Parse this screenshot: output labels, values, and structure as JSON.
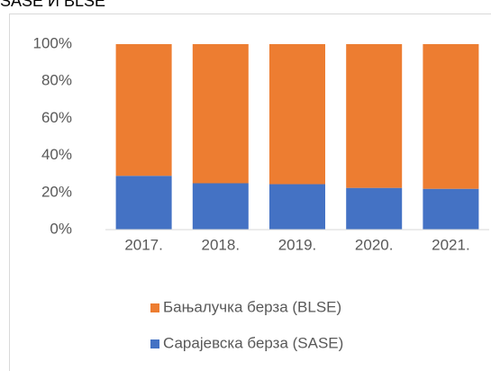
{
  "chart_data": {
    "type": "stacked_bar_100",
    "title": "SASE И BLSE",
    "categories": [
      "2017.",
      "2018.",
      "2019.",
      "2020.",
      "2021."
    ],
    "series": [
      {
        "name": "Сарајевска берза (SASE)",
        "color": "#4472C4",
        "values": [
          29,
          25,
          24.5,
          22.5,
          22
        ]
      },
      {
        "name": "Бањалучка берза (BLSE)",
        "color": "#ED7D31",
        "values": [
          71,
          75,
          75.5,
          77.5,
          78
        ]
      }
    ],
    "ylim": [
      0,
      100
    ],
    "yticks": [
      {
        "value": 0,
        "label": "0%"
      },
      {
        "value": 20,
        "label": "20%"
      },
      {
        "value": 40,
        "label": "40%"
      },
      {
        "value": 60,
        "label": "60%"
      },
      {
        "value": 80,
        "label": "80%"
      },
      {
        "value": 100,
        "label": "100%"
      }
    ],
    "legend": "bottom"
  }
}
